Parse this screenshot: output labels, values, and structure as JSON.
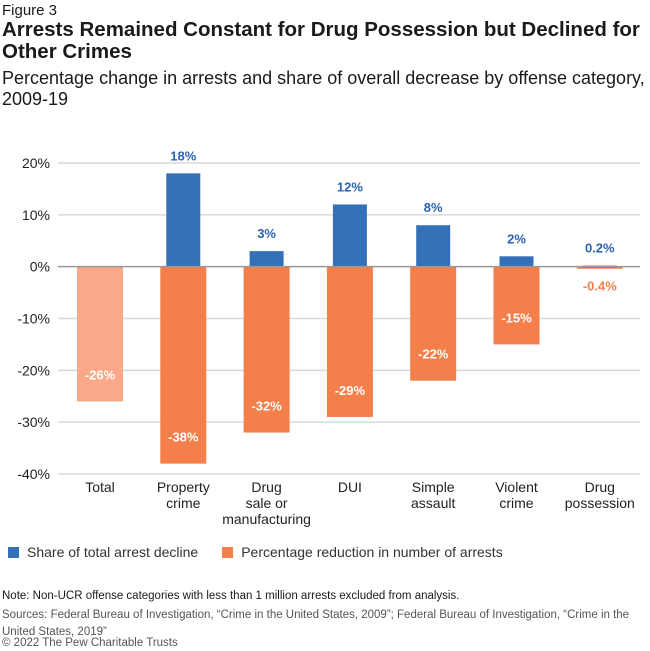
{
  "header": {
    "figure": "Figure 3",
    "title": "Arrests Remained Constant for Drug Possession but Declined for Other Crimes",
    "subtitle": "Percentage change in arrests and share of overall decrease by offense category, 2009-19"
  },
  "chart_data": {
    "type": "bar",
    "title": "Arrests Remained Constant for Drug Possession but Declined for Other Crimes",
    "categories": [
      "Total",
      "Property crime",
      "Drug sale or manufacturing",
      "DUI",
      "Simple assault",
      "Violent crime",
      "Drug possession"
    ],
    "series": [
      {
        "name": "Share of total arrest decline",
        "color": "#3470b7",
        "values": [
          null,
          18,
          3,
          12,
          8,
          2,
          0.2
        ],
        "labels": [
          "",
          "18%",
          "3%",
          "12%",
          "8%",
          "2%",
          "0.2%"
        ]
      },
      {
        "name": "Percentage reduction in number of arrests",
        "color": "#f47f4a",
        "values": [
          -26,
          -38,
          -32,
          -29,
          -22,
          -15,
          -0.4
        ],
        "labels": [
          "-26%",
          "-38%",
          "-32%",
          "-29%",
          "-22%",
          "-15%",
          "-0.4%"
        ]
      }
    ],
    "total_color": "#f9a987",
    "ylim": [
      -40,
      20
    ],
    "yticks": [
      20,
      10,
      0,
      -10,
      -20,
      -30,
      -40
    ],
    "ytick_labels": [
      "20%",
      "10%",
      "0%",
      "-10%",
      "-20%",
      "-30%",
      "-40%"
    ],
    "grid": true,
    "legend": "bottom-left",
    "xlabel": "",
    "ylabel": ""
  },
  "footer": {
    "note": "Note: Non-UCR offense categories with less than 1 million arrests excluded from analysis.",
    "sources": "Sources: Federal Bureau of Investigation, “Crime in the United States, 2009”; Federal Bureau of Investigation, “Crime in the United States, 2019”",
    "copyright": "© 2022 The Pew Charitable Trusts"
  }
}
